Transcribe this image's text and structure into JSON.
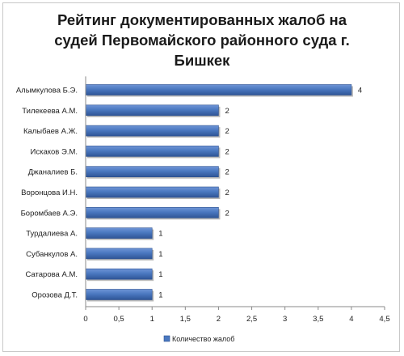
{
  "chart_data": {
    "type": "bar",
    "orientation": "horizontal",
    "title_lines": [
      "Рейтинг документированных жалоб на",
      "судей Первомайского районного суда г.",
      "Бишкек"
    ],
    "categories": [
      "Алымкулова Б.Э.",
      "Тилекеева А.М.",
      "Калыбаев А.Ж.",
      "Искаков Э.М.",
      "Джаналиев Б.",
      "Воронцова И.Н.",
      "Боромбаев А.Э.",
      "Турдалиева А.",
      "Субанкулов А.",
      "Сатарова А.М.",
      "Орозова Д.Т."
    ],
    "series": [
      {
        "name": "Количество жалоб",
        "values": [
          4,
          2,
          2,
          2,
          2,
          2,
          2,
          1,
          1,
          1,
          1
        ]
      }
    ],
    "data_labels": [
      "4",
      "2",
      "2",
      "2",
      "2",
      "2",
      "2",
      "1",
      "1",
      "1",
      "1"
    ],
    "x_ticks": [
      "0",
      "0,5",
      "1",
      "1,5",
      "2",
      "2,5",
      "3",
      "3,5",
      "4",
      "4,5"
    ],
    "xlim": [
      0,
      4.5
    ],
    "xlabel": "",
    "ylabel": "",
    "grid": false,
    "legend_position": "bottom",
    "bar_color": "#4a78c0"
  }
}
